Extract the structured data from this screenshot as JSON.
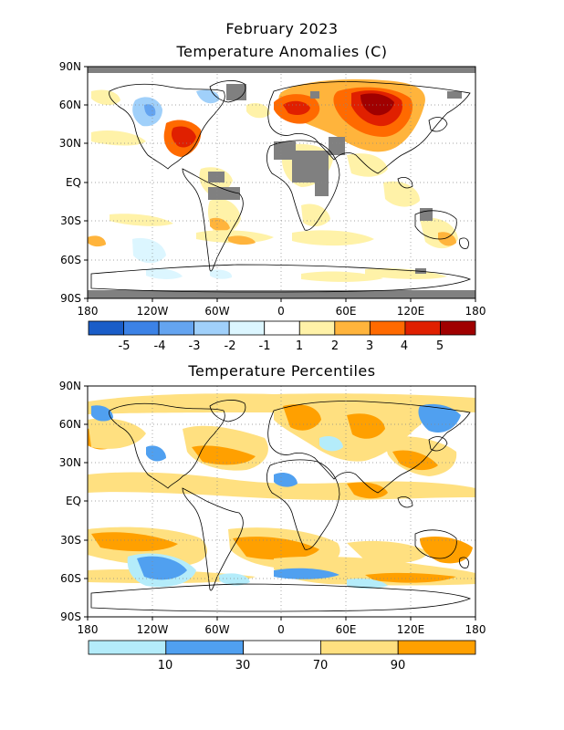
{
  "figure_title": "February 2023",
  "colors": {
    "land_outline": "#000000",
    "no_data": "#808080",
    "grid": "#888888"
  },
  "maps": [
    {
      "id": "anomalies",
      "title": "Temperature Anomalies (C)",
      "lat_ticks": [
        "90N",
        "60N",
        "30N",
        "EQ",
        "30S",
        "60S",
        "90S"
      ],
      "lon_ticks": [
        "180",
        "120W",
        "60W",
        "0",
        "60E",
        "120E",
        "180"
      ],
      "colorbar": {
        "colors": [
          "#1a5dc8",
          "#3c82e6",
          "#64a4f0",
          "#a0d0fa",
          "#dcf6ff",
          "#ffffff",
          "#fff2a8",
          "#ffb43c",
          "#ff6a00",
          "#e02000",
          "#a00000"
        ],
        "labels": [
          "-5",
          "-4",
          "-3",
          "-2",
          "-1",
          "1",
          "2",
          "3",
          "4",
          "5"
        ]
      }
    },
    {
      "id": "percentiles",
      "title": "Temperature Percentiles",
      "lat_ticks": [
        "90N",
        "60N",
        "30N",
        "EQ",
        "30S",
        "60S",
        "90S"
      ],
      "lon_ticks": [
        "180",
        "120W",
        "60W",
        "0",
        "60E",
        "120E",
        "180"
      ],
      "colorbar": {
        "colors": [
          "#b4ecfa",
          "#50a0f0",
          "#ffffff",
          "#ffe080",
          "#ffa000"
        ],
        "labels": [
          "10",
          "30",
          "70",
          "90"
        ]
      }
    }
  ]
}
